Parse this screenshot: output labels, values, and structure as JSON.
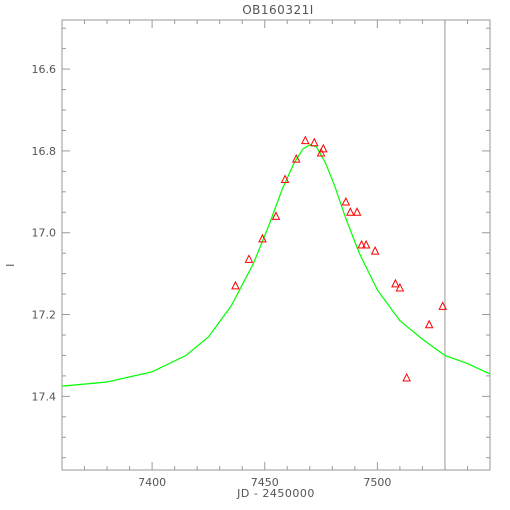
{
  "chart_data": {
    "type": "scatter",
    "title": "OB160321I",
    "xlabel": "JD - 2450000",
    "ylabel": "I",
    "xlim": [
      7360,
      7550
    ],
    "ylim": [
      17.58,
      16.48
    ],
    "y_inverted": true,
    "grid": false,
    "x_ticks": [
      7400,
      7450,
      7500
    ],
    "y_ticks": [
      16.6,
      16.8,
      17.0,
      17.2,
      17.4
    ],
    "y_tick_labels": [
      "16.6",
      "16.8",
      "17.0",
      "17.2",
      "17.4"
    ],
    "vertical_marker_x": 7530,
    "series": [
      {
        "kind": "points",
        "marker": "triangle",
        "color": "#ff0000",
        "x": [
          7437,
          7443,
          7449,
          7455,
          7459,
          7464,
          7468,
          7472,
          7475,
          7476,
          7486,
          7488,
          7491,
          7493,
          7495,
          7499,
          7508,
          7510,
          7513,
          7523,
          7529
        ],
        "y": [
          17.13,
          17.065,
          17.015,
          16.96,
          16.87,
          16.82,
          16.775,
          16.78,
          16.805,
          16.795,
          16.925,
          16.95,
          16.95,
          17.03,
          17.03,
          17.045,
          17.125,
          17.135,
          17.355,
          17.225,
          17.18
        ]
      },
      {
        "kind": "model-curve",
        "color": "#00ff00",
        "x": [
          7360,
          7380,
          7400,
          7415,
          7425,
          7435,
          7445,
          7452,
          7458,
          7463,
          7467,
          7470,
          7473,
          7477,
          7481,
          7486,
          7492,
          7500,
          7510,
          7520,
          7530,
          7540,
          7550
        ],
        "y": [
          17.375,
          17.365,
          17.34,
          17.3,
          17.255,
          17.18,
          17.075,
          16.98,
          16.89,
          16.83,
          16.795,
          16.785,
          16.79,
          16.83,
          16.885,
          16.965,
          17.05,
          17.14,
          17.215,
          17.26,
          17.3,
          17.32,
          17.345
        ]
      }
    ],
    "colors": {
      "frame": "#9a9a9a",
      "text": "#555555",
      "points": "#ff0000",
      "curve": "#00ff00",
      "marker_line": "#9a9a9a"
    }
  }
}
